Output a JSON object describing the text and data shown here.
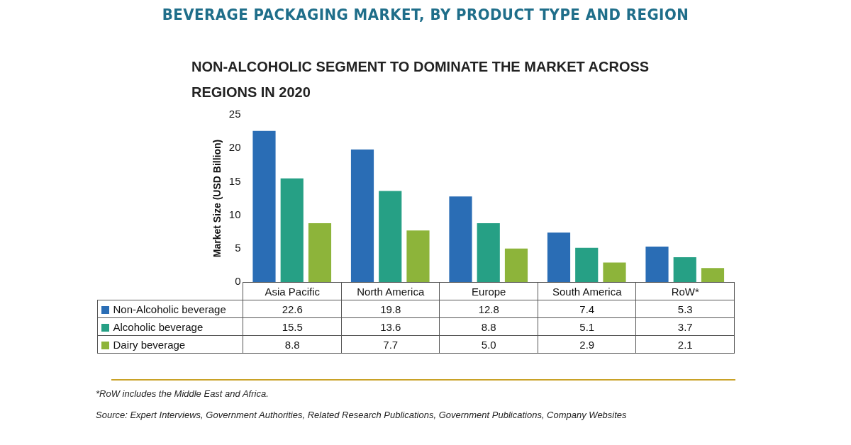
{
  "chart_data": {
    "type": "bar",
    "title": "BEVERAGE PACKAGING MARKET, BY PRODUCT TYPE AND REGION",
    "subtitle": "NON-ALCOHOLIC SEGMENT TO DOMINATE THE MARKET ACROSS REGIONS IN 2020",
    "ylabel": "Market Size (USD Billion)",
    "categories": [
      "Asia Pacific",
      "North America",
      "Europe",
      "South America",
      "RoW*"
    ],
    "series": [
      {
        "name": "Non-Alcoholic beverage",
        "color": "#2a6db5",
        "values": [
          22.6,
          19.8,
          12.8,
          7.4,
          5.3
        ],
        "value_labels": [
          "22.6",
          "19.8",
          "12.8",
          "7.4",
          "5.3"
        ]
      },
      {
        "name": "Alcoholic beverage",
        "color": "#26a085",
        "values": [
          15.5,
          13.6,
          8.8,
          5.1,
          3.7
        ],
        "value_labels": [
          "15.5",
          "13.6",
          "8.8",
          "5.1",
          "3.7"
        ]
      },
      {
        "name": "Dairy beverage",
        "color": "#8db43a",
        "values": [
          8.8,
          7.7,
          5.0,
          2.9,
          2.1
        ],
        "value_labels": [
          "8.8",
          "7.7",
          "5.0",
          "2.9",
          "2.1"
        ]
      }
    ],
    "ylim": [
      0,
      25
    ],
    "yticks": [
      0,
      5,
      10,
      15,
      20,
      25
    ],
    "grid": false,
    "legend": "bottom",
    "annotations": [
      "*RoW includes the Middle East and Africa.",
      "Source: Expert Interviews, Government Authorities, Related Research Publications, Government Publications, Company Websites"
    ]
  }
}
